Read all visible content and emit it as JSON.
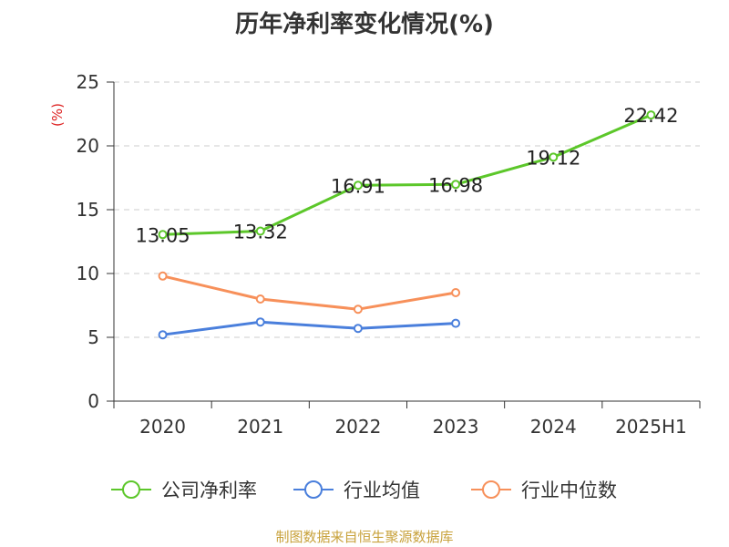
{
  "chart_data": {
    "type": "line",
    "title": "历年净利率变化情况(%)",
    "ylabel": "(%)",
    "categories": [
      "2020",
      "2021",
      "2022",
      "2023",
      "2024",
      "2025H1"
    ],
    "ylim": [
      0,
      25
    ],
    "yticks": [
      "0",
      "5",
      "10",
      "15",
      "20",
      "25"
    ],
    "grid": true,
    "legend_position": "bottom",
    "series": [
      {
        "name": "公司净利率",
        "color": "#5cc72a",
        "values": [
          13.05,
          13.32,
          16.91,
          16.98,
          19.12,
          22.42
        ],
        "labels": [
          "13.05",
          "13.32",
          "16.91",
          "16.98",
          "19.12",
          "22.42"
        ]
      },
      {
        "name": "行业均值",
        "color": "#4a7fdc",
        "values": [
          5.2,
          6.2,
          5.7,
          6.1,
          null,
          null
        ]
      },
      {
        "name": "行业中位数",
        "color": "#f7905a",
        "values": [
          9.8,
          8.0,
          7.2,
          8.5,
          null,
          null
        ]
      }
    ]
  },
  "footer": "制图数据来自恒生聚源数据库"
}
